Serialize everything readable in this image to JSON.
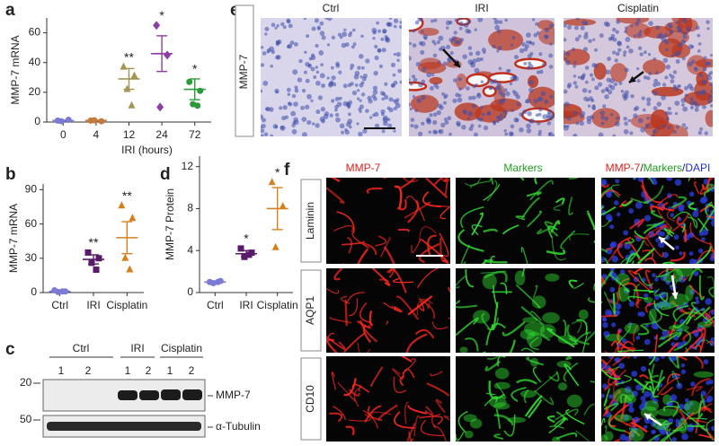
{
  "panel_labels": [
    "a",
    "b",
    "c",
    "d",
    "e",
    "f"
  ],
  "chart_data": [
    {
      "type": "dot_plot",
      "ylabel": "MMP-7 mRNA",
      "xlabel": "IRI (hours)",
      "categories": [
        "0",
        "4",
        "12",
        "24",
        "72"
      ],
      "ylim": [
        0,
        70
      ],
      "yticks": [
        0,
        20,
        40,
        60
      ],
      "groups": [
        {
          "color": "#7b7bd6",
          "marker": "circle",
          "points": [
            1,
            1.5,
            0.5
          ],
          "mean": 1,
          "error": 0.3
        },
        {
          "color": "#c47a3c",
          "marker": "circle",
          "points": [
            1,
            0.5,
            1.2
          ],
          "mean": 1,
          "error": 0.3
        },
        {
          "color": "#a39452",
          "marker": "triangle",
          "points": [
            37,
            31,
            22,
            11
          ],
          "mean": 29,
          "error": 7,
          "annotation": "**"
        },
        {
          "color": "#8e3da3",
          "marker": "diamond",
          "points": [
            65,
            45,
            10
          ],
          "mean": 46,
          "error": 12,
          "annotation": "*"
        },
        {
          "color": "#2a9a3a",
          "marker": "circle",
          "points": [
            27,
            21,
            12,
            11
          ],
          "mean": 22,
          "error": 7,
          "annotation": "*"
        }
      ]
    },
    {
      "type": "dot_plot",
      "ylabel": "MMP-7 mRNA",
      "categories": [
        "Ctrl",
        "IRI",
        "Cisplatin"
      ],
      "ylim": [
        0,
        95
      ],
      "yticks": [
        0,
        30,
        60,
        90
      ],
      "groups": [
        {
          "color": "#7b7bd6",
          "marker": "circle",
          "points": [
            2,
            1,
            0.5,
            1
          ],
          "mean": 1,
          "error": 0.5
        },
        {
          "color": "#5a1a6c",
          "marker": "square",
          "points": [
            35,
            30,
            26,
            20
          ],
          "mean": 29,
          "error": 4,
          "annotation": "**"
        },
        {
          "color": "#d4801e",
          "marker": "triangle",
          "points": [
            76,
            65,
            30,
            20
          ],
          "mean": 48,
          "error": 14,
          "annotation": "**"
        }
      ]
    },
    {
      "type": "dot_plot",
      "ylabel": "MMP-7 Protein",
      "categories": [
        "Ctrl",
        "IRI",
        "Cisplatin"
      ],
      "ylim": [
        0,
        13
      ],
      "yticks": [
        0,
        4,
        8,
        12
      ],
      "groups": [
        {
          "color": "#7b7bd6",
          "marker": "circle",
          "points": [
            1,
            1.1,
            0.9,
            1
          ],
          "mean": 1,
          "error": 0.05
        },
        {
          "color": "#5a1a6c",
          "marker": "square",
          "points": [
            4.2,
            3.8,
            3.4,
            3.6
          ],
          "mean": 3.7,
          "error": 0.3,
          "annotation": "*"
        },
        {
          "color": "#d4801e",
          "marker": "triangle",
          "points": [
            10.5,
            8.2,
            4.3
          ],
          "mean": 8,
          "error": 2,
          "annotation": "*"
        }
      ]
    }
  ],
  "blot": {
    "groups": [
      "Ctrl",
      "IRI",
      "Cisplatin"
    ],
    "lanes": [
      "1",
      "2",
      "1",
      "2",
      "1",
      "2"
    ],
    "markers": [
      "20",
      "50"
    ],
    "bands": [
      "MMP-7",
      "α-Tubulin"
    ]
  },
  "micrographs": {
    "stain": "MMP-7",
    "columns": [
      "Ctrl",
      "IRI",
      "Cisplatin"
    ]
  },
  "immunofluorescence": {
    "columns": [
      "MMP-7",
      "Markers"
    ],
    "merge": [
      "MMP-7",
      "/",
      "Markers",
      "/",
      "DAPI"
    ],
    "rows": [
      "Laminin",
      "AQP1",
      "CD10"
    ]
  }
}
